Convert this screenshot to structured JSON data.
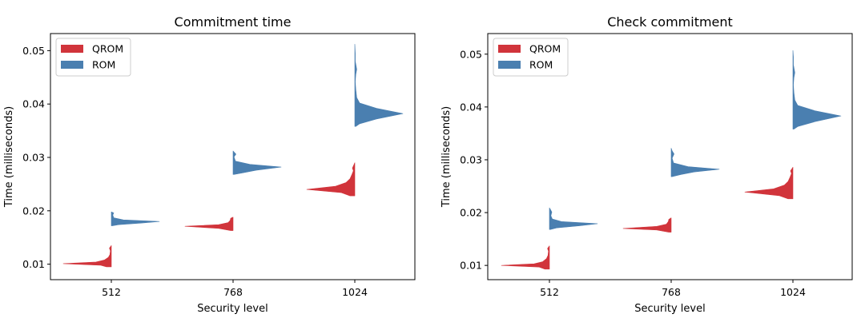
{
  "chart_data": [
    {
      "type": "violin",
      "title": "Commitment time",
      "xlabel": "Security level",
      "ylabel": "Time (milliseconds)",
      "categories": [
        "512",
        "768",
        "1024"
      ],
      "y_ticks": [
        0.01,
        0.02,
        0.03,
        0.04,
        0.05
      ],
      "y_tick_labels": [
        "0.01",
        "0.02",
        "0.03",
        "0.04",
        "0.05"
      ],
      "ylim": [
        0.0071,
        0.0532
      ],
      "legend": {
        "location": "top-left",
        "entries": [
          {
            "label": "QROM",
            "color": "#d1343b"
          },
          {
            "label": "ROM",
            "color": "#4a7fb0"
          }
        ]
      },
      "series": [
        {
          "name": "QROM",
          "side": "left",
          "color": "#d1343b",
          "groups": [
            {
              "category": "512",
              "min": 0.0095,
              "max": 0.0135,
              "profile": [
                [
                  0.0095,
                  0.1
                ],
                [
                  0.0098,
                  0.22
                ],
                [
                  0.0101,
                  1.0
                ],
                [
                  0.0104,
                  0.32
                ],
                [
                  0.0108,
                  0.14
                ],
                [
                  0.0113,
                  0.06
                ],
                [
                  0.0118,
                  0.03
                ],
                [
                  0.0125,
                  0.02
                ],
                [
                  0.013,
                  0.04
                ],
                [
                  0.0135,
                  0.0
                ]
              ]
            },
            {
              "category": "768",
              "min": 0.0163,
              "max": 0.0188,
              "profile": [
                [
                  0.0163,
                  0.05
                ],
                [
                  0.0167,
                  0.3
                ],
                [
                  0.0171,
                  1.0
                ],
                [
                  0.0174,
                  0.3
                ],
                [
                  0.0178,
                  0.1
                ],
                [
                  0.0182,
                  0.06
                ],
                [
                  0.0186,
                  0.05
                ],
                [
                  0.0188,
                  0.0
                ]
              ]
            },
            {
              "category": "1024",
              "min": 0.0228,
              "max": 0.029,
              "profile": [
                [
                  0.0228,
                  0.1
                ],
                [
                  0.0234,
                  0.28
                ],
                [
                  0.024,
                  1.0
                ],
                [
                  0.0246,
                  0.4
                ],
                [
                  0.0253,
                  0.18
                ],
                [
                  0.026,
                  0.1
                ],
                [
                  0.0268,
                  0.06
                ],
                [
                  0.0275,
                  0.03
                ],
                [
                  0.028,
                  0.05
                ],
                [
                  0.0286,
                  0.02
                ],
                [
                  0.029,
                  0.0
                ]
              ]
            }
          ]
        },
        {
          "name": "ROM",
          "side": "right",
          "color": "#4a7fb0",
          "groups": [
            {
              "category": "512",
              "min": 0.0172,
              "max": 0.0198,
              "profile": [
                [
                  0.0172,
                  0.02
                ],
                [
                  0.0174,
                  0.15
                ],
                [
                  0.0177,
                  0.62
                ],
                [
                  0.018,
                  1.0
                ],
                [
                  0.0183,
                  0.25
                ],
                [
                  0.0187,
                  0.05
                ],
                [
                  0.0192,
                  0.03
                ],
                [
                  0.0196,
                  0.05
                ],
                [
                  0.0198,
                  0.0
                ]
              ]
            },
            {
              "category": "768",
              "min": 0.0268,
              "max": 0.0312,
              "profile": [
                [
                  0.0268,
                  0.02
                ],
                [
                  0.0271,
                  0.2
                ],
                [
                  0.0276,
                  0.48
                ],
                [
                  0.0282,
                  1.0
                ],
                [
                  0.0287,
                  0.35
                ],
                [
                  0.0293,
                  0.05
                ],
                [
                  0.0301,
                  0.02
                ],
                [
                  0.0306,
                  0.06
                ],
                [
                  0.0312,
                  0.0
                ]
              ]
            },
            {
              "category": "1024",
              "min": 0.0358,
              "max": 0.0512,
              "profile": [
                [
                  0.0358,
                  0.02
                ],
                [
                  0.0363,
                  0.1
                ],
                [
                  0.0372,
                  0.45
                ],
                [
                  0.0382,
                  1.0
                ],
                [
                  0.0392,
                  0.45
                ],
                [
                  0.0402,
                  0.1
                ],
                [
                  0.0412,
                  0.04
                ],
                [
                  0.0428,
                  0.02
                ],
                [
                  0.0442,
                  0.01
                ],
                [
                  0.0455,
                  0.02
                ],
                [
                  0.0465,
                  0.04
                ],
                [
                  0.048,
                  0.01
                ],
                [
                  0.0495,
                  0.01
                ],
                [
                  0.0512,
                  0.0
                ]
              ]
            }
          ]
        }
      ]
    },
    {
      "type": "violin",
      "title": "Check commitment",
      "xlabel": "Security level",
      "ylabel": "Time (milliseconds)",
      "categories": [
        "512",
        "768",
        "1024"
      ],
      "y_ticks": [
        0.01,
        0.02,
        0.03,
        0.04,
        0.05
      ],
      "y_tick_labels": [
        "0.01",
        "0.02",
        "0.03",
        "0.04",
        "0.05"
      ],
      "ylim": [
        0.0073,
        0.0539
      ],
      "legend": {
        "location": "top-left",
        "entries": [
          {
            "label": "QROM",
            "color": "#d1343b"
          },
          {
            "label": "ROM",
            "color": "#4a7fb0"
          }
        ]
      },
      "series": [
        {
          "name": "QROM",
          "side": "left",
          "color": "#d1343b",
          "groups": [
            {
              "category": "512",
              "min": 0.0093,
              "max": 0.0137,
              "profile": [
                [
                  0.0093,
                  0.1
                ],
                [
                  0.0097,
                  0.22
                ],
                [
                  0.01,
                  1.0
                ],
                [
                  0.0103,
                  0.32
                ],
                [
                  0.0107,
                  0.14
                ],
                [
                  0.0113,
                  0.06
                ],
                [
                  0.0119,
                  0.03
                ],
                [
                  0.0127,
                  0.02
                ],
                [
                  0.0132,
                  0.04
                ],
                [
                  0.0137,
                  0.0
                ]
              ]
            },
            {
              "category": "768",
              "min": 0.0163,
              "max": 0.019,
              "profile": [
                [
                  0.0163,
                  0.05
                ],
                [
                  0.0167,
                  0.3
                ],
                [
                  0.017,
                  1.0
                ],
                [
                  0.0174,
                  0.3
                ],
                [
                  0.0178,
                  0.1
                ],
                [
                  0.0183,
                  0.06
                ],
                [
                  0.0187,
                  0.05
                ],
                [
                  0.019,
                  0.0
                ]
              ]
            },
            {
              "category": "1024",
              "min": 0.0226,
              "max": 0.0286,
              "profile": [
                [
                  0.0226,
                  0.1
                ],
                [
                  0.0232,
                  0.28
                ],
                [
                  0.0239,
                  1.0
                ],
                [
                  0.0245,
                  0.4
                ],
                [
                  0.0252,
                  0.18
                ],
                [
                  0.0259,
                  0.1
                ],
                [
                  0.0267,
                  0.06
                ],
                [
                  0.0274,
                  0.03
                ],
                [
                  0.0279,
                  0.05
                ],
                [
                  0.0283,
                  0.02
                ],
                [
                  0.0286,
                  0.0
                ]
              ]
            }
          ]
        },
        {
          "name": "ROM",
          "side": "right",
          "color": "#4a7fb0",
          "groups": [
            {
              "category": "512",
              "min": 0.0168,
              "max": 0.0209,
              "profile": [
                [
                  0.0168,
                  0.02
                ],
                [
                  0.0171,
                  0.15
                ],
                [
                  0.0175,
                  0.62
                ],
                [
                  0.0179,
                  1.0
                ],
                [
                  0.0183,
                  0.25
                ],
                [
                  0.0188,
                  0.06
                ],
                [
                  0.0194,
                  0.03
                ],
                [
                  0.0201,
                  0.05
                ],
                [
                  0.0206,
                  0.02
                ],
                [
                  0.0209,
                  0.0
                ]
              ]
            },
            {
              "category": "768",
              "min": 0.0268,
              "max": 0.0322,
              "profile": [
                [
                  0.0268,
                  0.02
                ],
                [
                  0.0272,
                  0.2
                ],
                [
                  0.0277,
                  0.48
                ],
                [
                  0.0282,
                  1.0
                ],
                [
                  0.0287,
                  0.35
                ],
                [
                  0.0294,
                  0.05
                ],
                [
                  0.0303,
                  0.02
                ],
                [
                  0.0311,
                  0.06
                ],
                [
                  0.0317,
                  0.02
                ],
                [
                  0.0322,
                  0.0
                ]
              ]
            },
            {
              "category": "1024",
              "min": 0.0358,
              "max": 0.0507,
              "profile": [
                [
                  0.0358,
                  0.02
                ],
                [
                  0.0363,
                  0.1
                ],
                [
                  0.0372,
                  0.45
                ],
                [
                  0.0383,
                  1.0
                ],
                [
                  0.0393,
                  0.45
                ],
                [
                  0.0403,
                  0.1
                ],
                [
                  0.0413,
                  0.04
                ],
                [
                  0.0428,
                  0.02
                ],
                [
                  0.0442,
                  0.01
                ],
                [
                  0.0455,
                  0.02
                ],
                [
                  0.0465,
                  0.04
                ],
                [
                  0.048,
                  0.01
                ],
                [
                  0.0495,
                  0.01
                ],
                [
                  0.0507,
                  0.0
                ]
              ]
            }
          ]
        }
      ]
    }
  ]
}
